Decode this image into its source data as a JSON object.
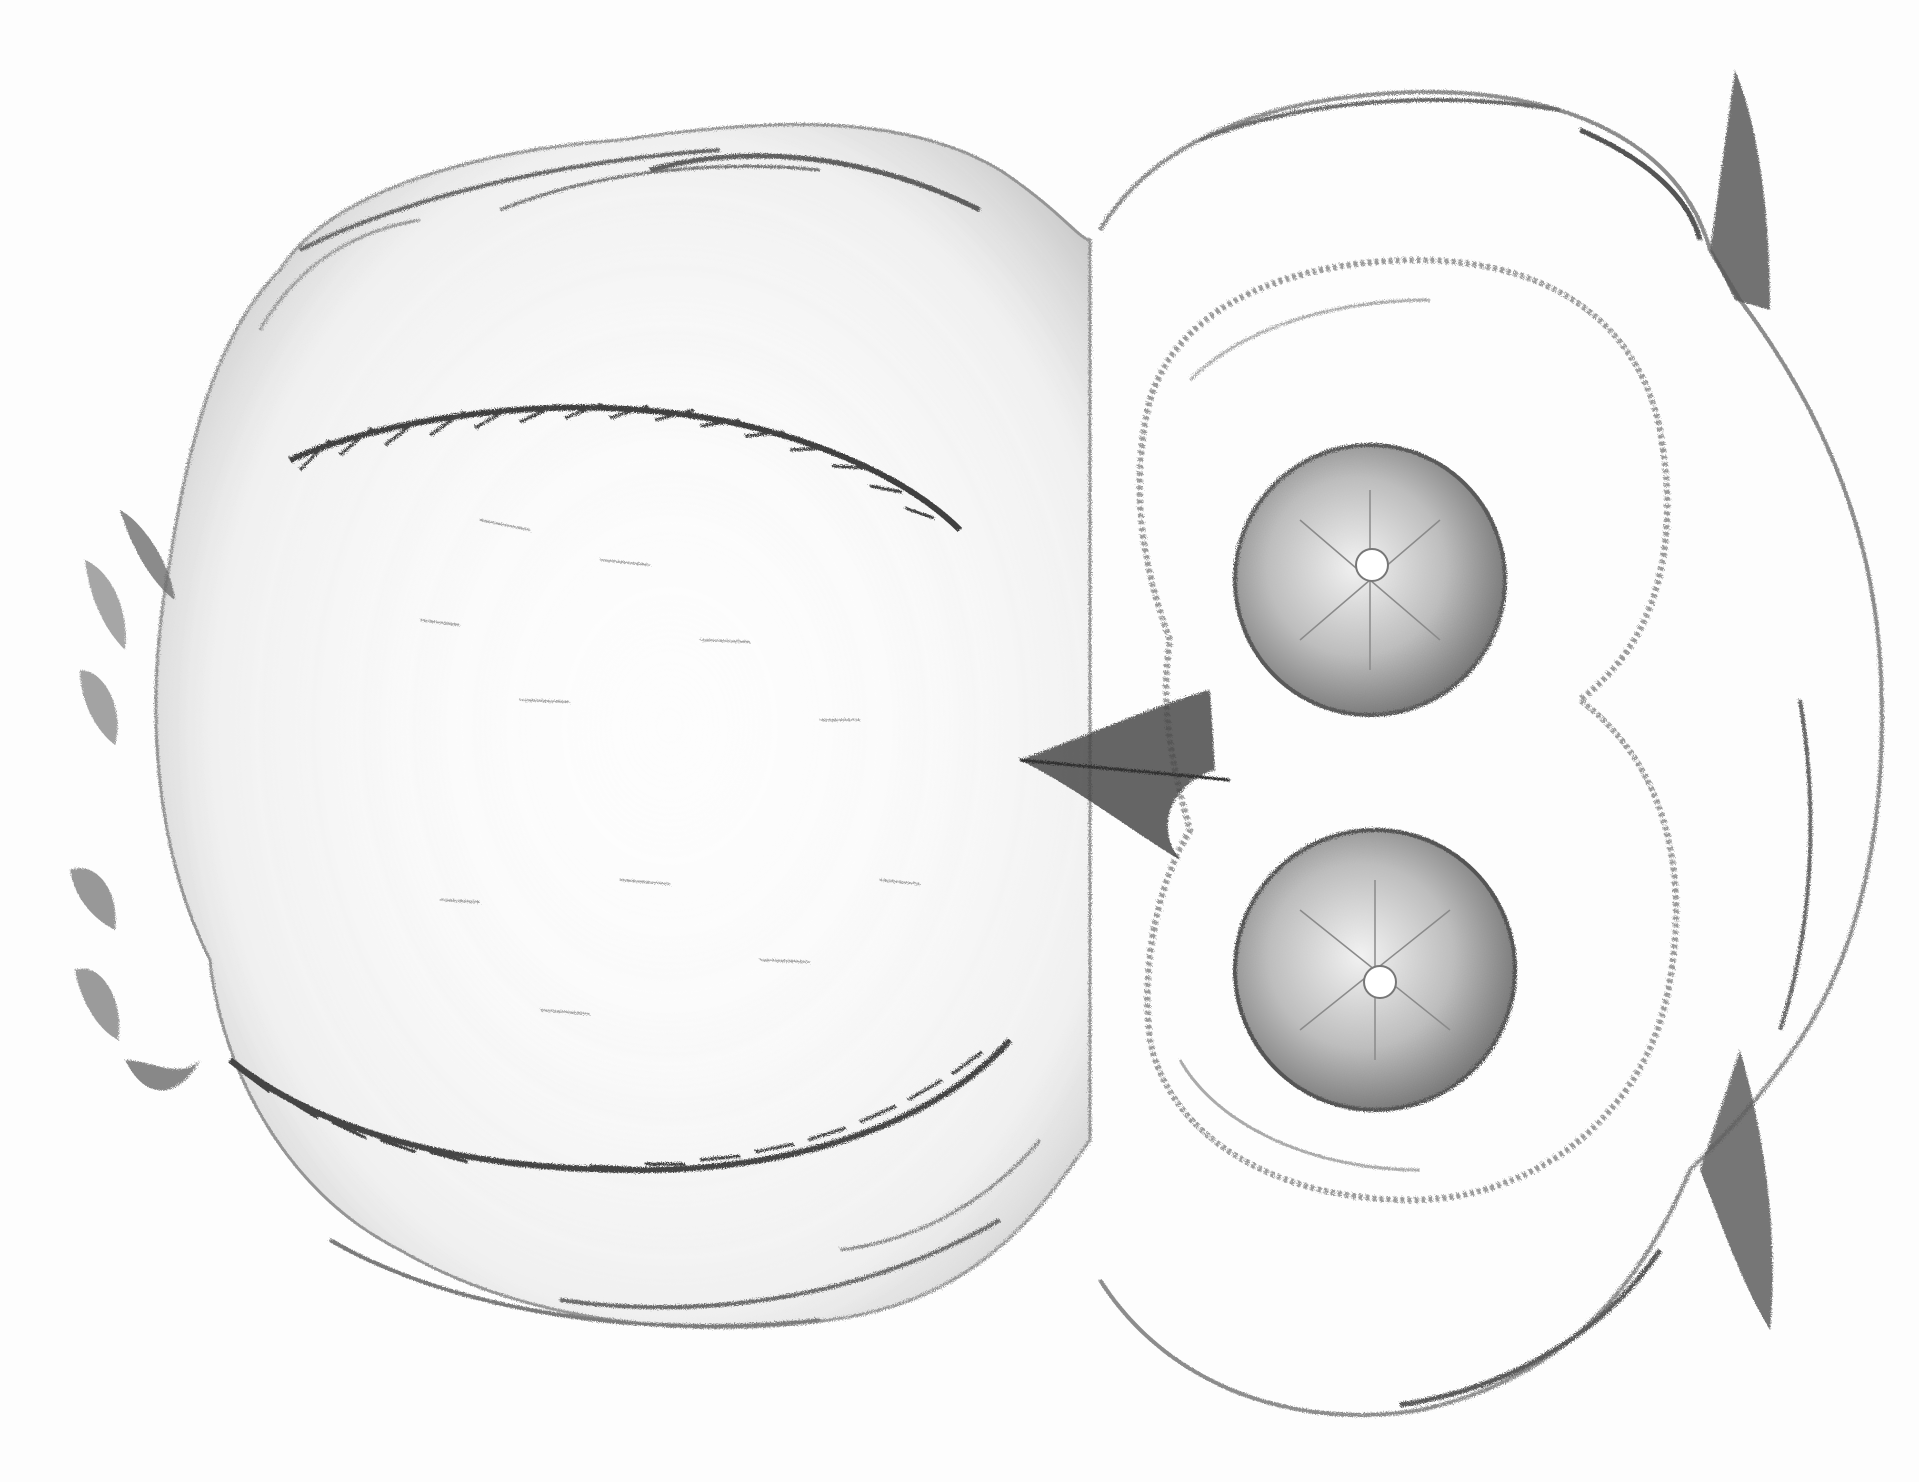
{
  "image": {
    "subject": "owl-pencil-sketch",
    "medium": "graphite",
    "orientation": "rotated-90-degrees",
    "colors": {
      "paper": "#fdfdfd",
      "graphite_dark": "#3a3a3a",
      "graphite_mid": "#7a7a7a",
      "graphite_light": "#b8b8b8"
    }
  }
}
